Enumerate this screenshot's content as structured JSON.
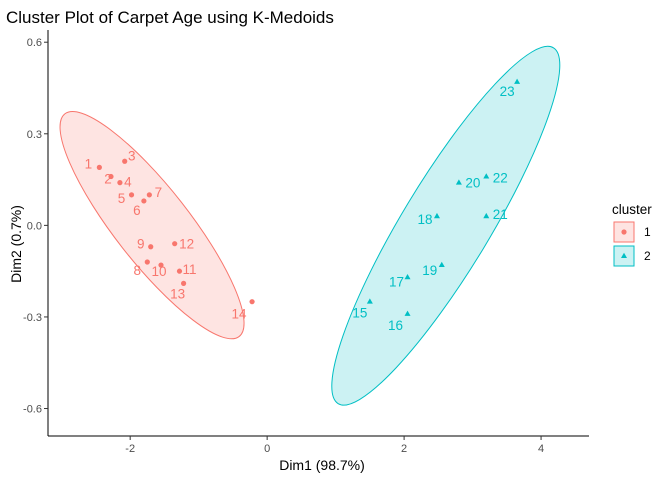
{
  "chart_data": {
    "type": "scatter",
    "title": "Cluster Plot of Carpet Age using K-Medoids",
    "xlabel": "Dim1 (98.7%)",
    "ylabel": "Dim2 (0.7%)",
    "xlim": [
      -3.2,
      4.7
    ],
    "ylim": [
      -0.69,
      0.64
    ],
    "x_ticks": [
      -2,
      0,
      2,
      4
    ],
    "x_tick_labels": [
      "-2",
      "0",
      "2",
      "4"
    ],
    "y_ticks": [
      -0.6,
      -0.3,
      0.0,
      0.3,
      0.6
    ],
    "y_tick_labels": [
      "-0.6",
      "-0.3",
      "0.0",
      "0.3",
      "0.6"
    ],
    "grid": false,
    "legend_position": "right",
    "legend_title": "cluster",
    "series": [
      {
        "name": "1",
        "color": "#F8766D",
        "marker": "circle",
        "points": [
          {
            "label": "1",
            "x": -2.45,
            "y": 0.19
          },
          {
            "label": "2",
            "x": -2.28,
            "y": 0.16
          },
          {
            "label": "3",
            "x": -2.08,
            "y": 0.21
          },
          {
            "label": "4",
            "x": -2.15,
            "y": 0.14
          },
          {
            "label": "5",
            "x": -1.98,
            "y": 0.1
          },
          {
            "label": "6",
            "x": -1.8,
            "y": 0.08
          },
          {
            "label": "7",
            "x": -1.72,
            "y": 0.1
          },
          {
            "label": "8",
            "x": -1.75,
            "y": -0.12
          },
          {
            "label": "9",
            "x": -1.7,
            "y": -0.07
          },
          {
            "label": "10",
            "x": -1.55,
            "y": -0.13
          },
          {
            "label": "11",
            "x": -1.28,
            "y": -0.15
          },
          {
            "label": "12",
            "x": -1.35,
            "y": -0.06
          },
          {
            "label": "13",
            "x": -1.22,
            "y": -0.19
          },
          {
            "label": "14",
            "x": -0.22,
            "y": -0.25
          }
        ]
      },
      {
        "name": "2",
        "color": "#00BFC4",
        "marker": "triangle",
        "points": [
          {
            "label": "15",
            "x": 1.5,
            "y": -0.25
          },
          {
            "label": "16",
            "x": 2.05,
            "y": -0.29
          },
          {
            "label": "17",
            "x": 2.05,
            "y": -0.17
          },
          {
            "label": "18",
            "x": 2.48,
            "y": 0.03
          },
          {
            "label": "19",
            "x": 2.55,
            "y": -0.13
          },
          {
            "label": "20",
            "x": 2.8,
            "y": 0.14
          },
          {
            "label": "21",
            "x": 3.2,
            "y": 0.03
          },
          {
            "label": "22",
            "x": 3.2,
            "y": 0.16
          },
          {
            "label": "23",
            "x": 3.65,
            "y": 0.47
          }
        ]
      }
    ]
  }
}
